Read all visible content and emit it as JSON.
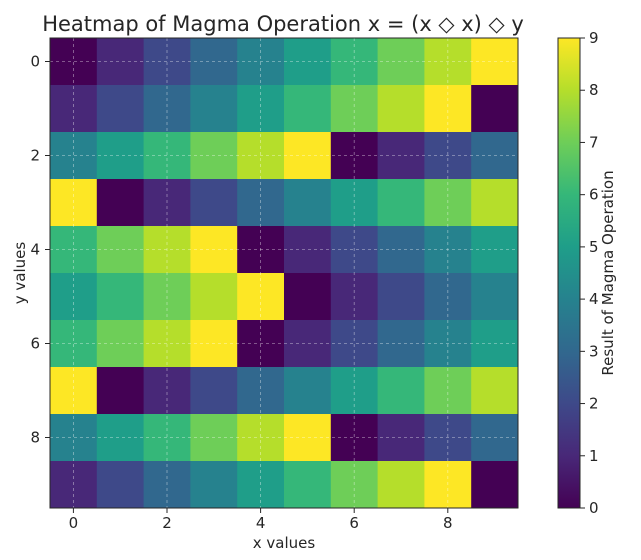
{
  "chart_data": {
    "type": "heatmap",
    "title": "Heatmap of Magma Operation x = (x ◇ x) ◇ y",
    "xlabel": "x values",
    "ylabel": "y values",
    "colorbar_label": "Result of Magma Operation",
    "colormap": "viridis",
    "vmin": 0,
    "vmax": 9,
    "x": [
      0,
      1,
      2,
      3,
      4,
      5,
      6,
      7,
      8,
      9
    ],
    "y": [
      0,
      1,
      2,
      3,
      4,
      5,
      6,
      7,
      8,
      9
    ],
    "x_ticks": [
      0,
      2,
      4,
      6,
      8
    ],
    "y_ticks": [
      0,
      2,
      4,
      6,
      8
    ],
    "colorbar_ticks": [
      0,
      1,
      2,
      3,
      4,
      5,
      6,
      7,
      8,
      9
    ],
    "grid": true,
    "values": [
      [
        0,
        1,
        2,
        3,
        4,
        5,
        6,
        7,
        8,
        9
      ],
      [
        1,
        2,
        3,
        4,
        5,
        6,
        7,
        8,
        9,
        0
      ],
      [
        4,
        5,
        6,
        7,
        8,
        9,
        0,
        1,
        2,
        3
      ],
      [
        9,
        0,
        1,
        2,
        3,
        4,
        5,
        6,
        7,
        8
      ],
      [
        6,
        7,
        8,
        9,
        0,
        1,
        2,
        3,
        4,
        5
      ],
      [
        5,
        6,
        7,
        8,
        9,
        0,
        1,
        2,
        3,
        4
      ],
      [
        6,
        7,
        8,
        9,
        0,
        1,
        2,
        3,
        4,
        5
      ],
      [
        9,
        0,
        1,
        2,
        3,
        4,
        5,
        6,
        7,
        8
      ],
      [
        4,
        5,
        6,
        7,
        8,
        9,
        0,
        1,
        2,
        3
      ],
      [
        1,
        2,
        3,
        4,
        5,
        6,
        7,
        8,
        9,
        0
      ]
    ]
  }
}
